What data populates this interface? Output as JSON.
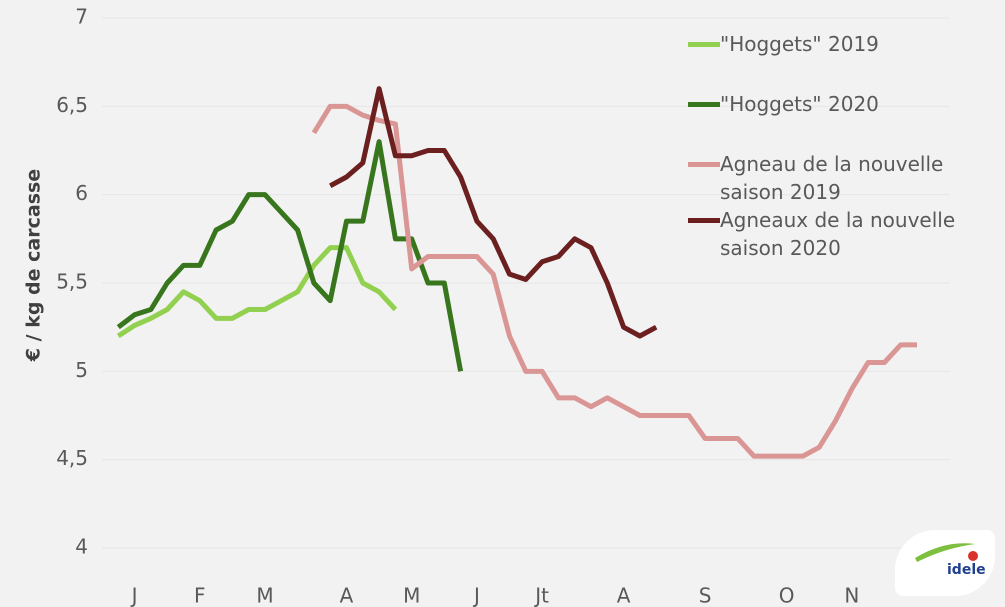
{
  "chart_data": {
    "type": "line",
    "ylabel": "€ / kg de carcasse",
    "xlim": [
      0,
      52
    ],
    "xticks": [
      {
        "value": 2,
        "label": "J"
      },
      {
        "value": 6,
        "label": "F"
      },
      {
        "value": 10,
        "label": "M"
      },
      {
        "value": 15,
        "label": "A"
      },
      {
        "value": 19,
        "label": "M"
      },
      {
        "value": 23,
        "label": "J"
      },
      {
        "value": 27,
        "label": "Jt"
      },
      {
        "value": 32,
        "label": "A"
      },
      {
        "value": 37,
        "label": "S"
      },
      {
        "value": 42,
        "label": "O"
      },
      {
        "value": 46,
        "label": "N"
      }
    ],
    "ylim": [
      4,
      7
    ],
    "yticks": [
      4,
      {
        "value": 4.5,
        "label": "4,5"
      },
      5,
      {
        "value": 5.5,
        "label": "5,5"
      },
      6,
      {
        "value": 6.5,
        "label": "6,5"
      },
      7
    ],
    "series": [
      {
        "name": "\"Hoggets\" 2019",
        "color": "#92d050",
        "x": [
          1,
          2,
          3,
          4,
          5,
          6,
          7,
          8,
          9,
          10,
          11,
          12,
          13,
          14,
          15,
          16,
          17,
          18
        ],
        "values": [
          5.2,
          5.26,
          5.3,
          5.35,
          5.45,
          5.4,
          5.3,
          5.3,
          5.35,
          5.35,
          5.4,
          5.45,
          5.6,
          5.7,
          5.7,
          5.5,
          5.45,
          5.35
        ]
      },
      {
        "name": "\"Hoggets\" 2020",
        "color": "#38761d",
        "x": [
          1,
          2,
          3,
          4,
          5,
          6,
          7,
          8,
          9,
          10,
          11,
          12,
          13,
          14,
          15,
          16,
          17,
          18,
          19,
          20,
          21,
          22
        ],
        "values": [
          5.25,
          5.32,
          5.35,
          5.5,
          5.6,
          5.6,
          5.8,
          5.85,
          6.0,
          6.0,
          5.9,
          5.8,
          5.5,
          5.4,
          5.85,
          5.85,
          6.3,
          5.75,
          5.75,
          5.5,
          5.5,
          5.0
        ]
      },
      {
        "name": "Agneau de la nouvelle saison 2019",
        "color": "#d99694",
        "x": [
          13,
          14,
          15,
          16,
          17,
          18,
          19,
          20,
          21,
          22,
          23,
          24,
          25,
          26,
          27,
          28,
          29,
          30,
          31,
          32,
          33,
          34,
          35,
          36,
          37,
          38,
          39,
          40,
          41,
          42,
          43,
          44,
          45,
          46,
          47,
          48,
          49,
          50
        ],
        "values": [
          6.35,
          6.5,
          6.5,
          6.45,
          6.42,
          6.4,
          5.58,
          5.65,
          5.65,
          5.65,
          5.65,
          5.55,
          5.2,
          5.0,
          5.0,
          4.85,
          4.85,
          4.8,
          4.85,
          4.8,
          4.75,
          4.75,
          4.75,
          4.75,
          4.62,
          4.62,
          4.62,
          4.52,
          4.52,
          4.52,
          4.52,
          4.57,
          4.72,
          4.9,
          5.05,
          5.05,
          5.15,
          5.15
        ]
      },
      {
        "name": "Agneaux de la nouvelle saison 2020",
        "color": "#6b1f1f",
        "x": [
          14,
          15,
          16,
          17,
          18,
          19,
          20,
          21,
          22,
          23,
          24,
          25,
          26,
          27,
          28,
          29,
          30,
          31,
          32,
          33,
          34
        ],
        "values": [
          6.05,
          6.1,
          6.18,
          6.6,
          6.22,
          6.22,
          6.25,
          6.25,
          6.1,
          5.85,
          5.75,
          5.55,
          5.52,
          5.62,
          5.65,
          5.75,
          5.7,
          5.5,
          5.25,
          5.2,
          5.25
        ]
      }
    ]
  },
  "logo": "idele"
}
